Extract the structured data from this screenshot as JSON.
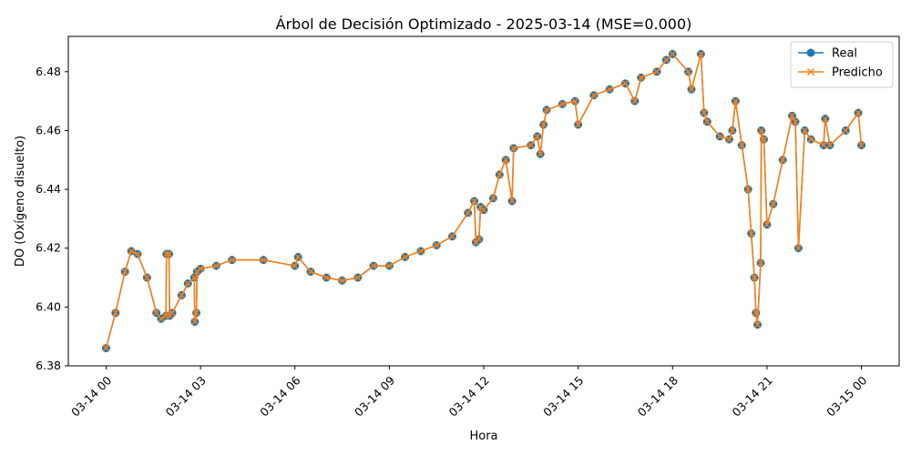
{
  "chart_data": {
    "type": "line",
    "title": "Árbol de Decisión Optimizado - 2025-03-14 (MSE=0.000)",
    "xlabel": "Hora",
    "ylabel": "DO (Oxígeno disuelto)",
    "xlim_hours": [
      -1.2,
      25.2
    ],
    "ylim": [
      6.38,
      6.492
    ],
    "x_ticks": [
      {
        "hour": 0,
        "label": "03-14 00"
      },
      {
        "hour": 3,
        "label": "03-14 03"
      },
      {
        "hour": 6,
        "label": "03-14 06"
      },
      {
        "hour": 9,
        "label": "03-14 09"
      },
      {
        "hour": 12,
        "label": "03-14 12"
      },
      {
        "hour": 15,
        "label": "03-14 15"
      },
      {
        "hour": 18,
        "label": "03-14 18"
      },
      {
        "hour": 21,
        "label": "03-14 21"
      },
      {
        "hour": 24,
        "label": "03-15 00"
      }
    ],
    "y_ticks": [
      {
        "value": 6.38,
        "label": "6.38"
      },
      {
        "value": 6.4,
        "label": "6.40"
      },
      {
        "value": 6.42,
        "label": "6.42"
      },
      {
        "value": 6.44,
        "label": "6.44"
      },
      {
        "value": 6.46,
        "label": "6.46"
      },
      {
        "value": 6.48,
        "label": "6.48"
      }
    ],
    "grid": false,
    "legend_position": "top-right",
    "series": [
      {
        "name": "Real",
        "color": "#1f77b4",
        "marker": "circle"
      },
      {
        "name": "Predicho",
        "color": "#ff7f0e",
        "marker": "x"
      }
    ],
    "x": [
      0.0,
      0.3,
      0.6,
      0.8,
      1.0,
      1.3,
      1.6,
      1.75,
      1.9,
      1.92,
      2.0,
      2.02,
      2.1,
      2.4,
      2.6,
      2.8,
      2.82,
      2.87,
      2.89,
      3.0,
      3.5,
      4.0,
      5.0,
      6.0,
      6.1,
      6.5,
      7.0,
      7.5,
      8.0,
      8.5,
      9.0,
      9.5,
      10.0,
      10.5,
      11.0,
      11.5,
      11.7,
      11.75,
      11.85,
      11.9,
      12.0,
      12.3,
      12.5,
      12.7,
      12.9,
      12.95,
      13.5,
      13.7,
      13.8,
      13.9,
      14.0,
      14.5,
      14.9,
      15.0,
      15.5,
      16.0,
      16.5,
      16.8,
      17.0,
      17.5,
      17.8,
      18.0,
      18.5,
      18.6,
      18.9,
      19.0,
      19.1,
      19.5,
      19.8,
      19.9,
      20.0,
      20.2,
      20.4,
      20.5,
      20.6,
      20.65,
      20.7,
      20.8,
      20.82,
      20.9,
      21.0,
      21.2,
      21.5,
      21.8,
      21.9,
      22.0,
      22.2,
      22.4,
      22.8,
      22.85,
      23.0,
      23.5,
      23.9,
      24.0
    ],
    "values": [
      6.386,
      6.398,
      6.412,
      6.419,
      6.418,
      6.41,
      6.398,
      6.396,
      6.397,
      6.418,
      6.418,
      6.397,
      6.398,
      6.404,
      6.408,
      6.41,
      6.395,
      6.398,
      6.412,
      6.413,
      6.414,
      6.416,
      6.416,
      6.414,
      6.417,
      6.412,
      6.41,
      6.409,
      6.41,
      6.414,
      6.414,
      6.417,
      6.419,
      6.421,
      6.424,
      6.432,
      6.436,
      6.422,
      6.423,
      6.434,
      6.433,
      6.437,
      6.445,
      6.45,
      6.436,
      6.454,
      6.455,
      6.458,
      6.452,
      6.462,
      6.467,
      6.469,
      6.47,
      6.462,
      6.472,
      6.474,
      6.476,
      6.47,
      6.478,
      6.48,
      6.484,
      6.486,
      6.48,
      6.474,
      6.486,
      6.466,
      6.463,
      6.458,
      6.457,
      6.46,
      6.47,
      6.455,
      6.44,
      6.425,
      6.41,
      6.398,
      6.394,
      6.415,
      6.46,
      6.457,
      6.428,
      6.435,
      6.45,
      6.465,
      6.463,
      6.42,
      6.46,
      6.457,
      6.455,
      6.464,
      6.455,
      6.46,
      6.466,
      6.455
    ]
  }
}
